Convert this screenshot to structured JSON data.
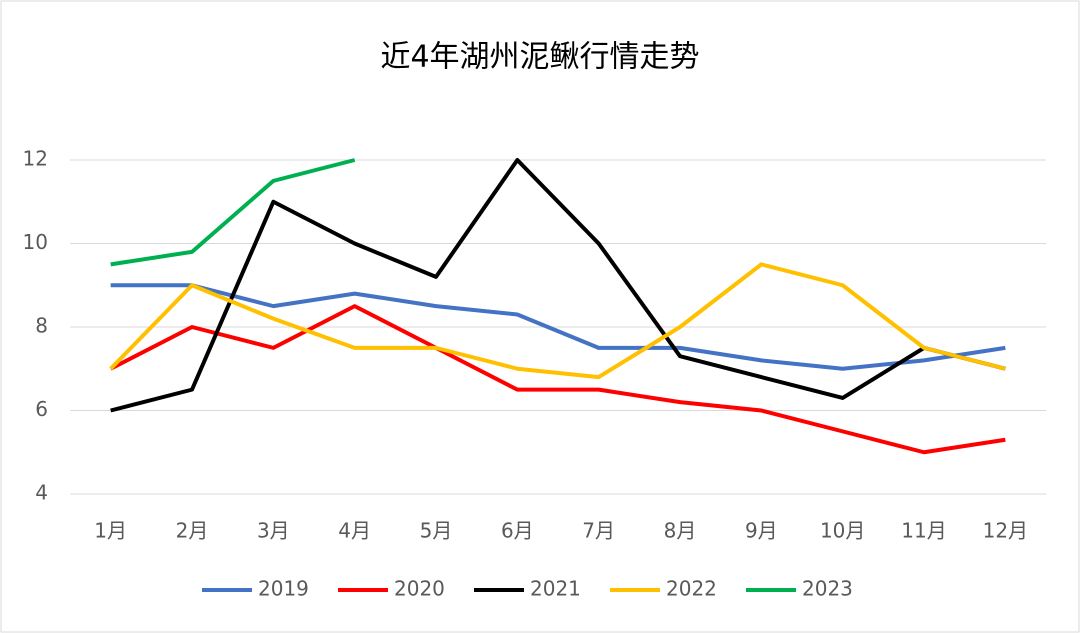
{
  "chart_data": {
    "type": "line",
    "title": "近4年湖州泥鳅行情走势",
    "categories": [
      "1月",
      "2月",
      "3月",
      "4月",
      "5月",
      "6月",
      "7月",
      "8月",
      "9月",
      "10月",
      "11月",
      "12月"
    ],
    "series": [
      {
        "name": "2019",
        "color": "#4472c4",
        "values": [
          9,
          9,
          8.5,
          8.8,
          8.5,
          8.3,
          7.5,
          7.5,
          7.2,
          7.0,
          7.2,
          7.5
        ]
      },
      {
        "name": "2020",
        "color": "#ff0000",
        "values": [
          7,
          8,
          7.5,
          8.5,
          7.5,
          6.5,
          6.5,
          6.2,
          6.0,
          5.5,
          5.0,
          5.3
        ]
      },
      {
        "name": "2021",
        "color": "#000000",
        "values": [
          6,
          6.5,
          11,
          10,
          9.2,
          12,
          10,
          7.3,
          6.8,
          6.3,
          7.5,
          7.0
        ]
      },
      {
        "name": "2022",
        "color": "#ffc000",
        "values": [
          7,
          9,
          8.2,
          7.5,
          7.5,
          7.0,
          6.8,
          8.0,
          9.5,
          9.0,
          7.5,
          7.0
        ]
      },
      {
        "name": "2023",
        "color": "#00b050",
        "values": [
          9.5,
          9.8,
          11.5,
          12,
          null,
          null,
          null,
          null,
          null,
          null,
          null,
          null
        ]
      }
    ],
    "ylim": [
      4,
      12
    ],
    "yticks": [
      4,
      6,
      8,
      10,
      12
    ],
    "grid": true,
    "legend": "bottom"
  }
}
